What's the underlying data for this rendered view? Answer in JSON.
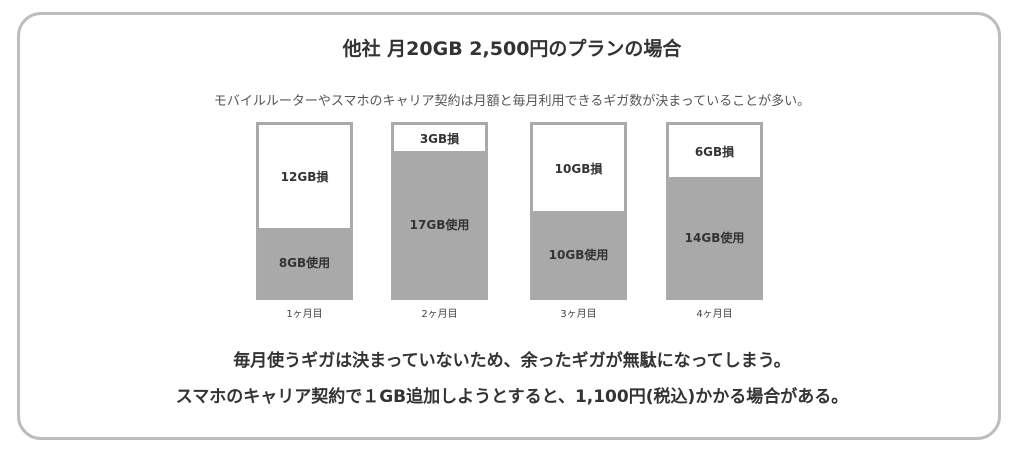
{
  "title": "他社 月20GB 2,500円のプランの場合",
  "subtitle": "モバイルルーターやスマホのキャリア契約は月額と毎月利用できるギガ数が決まっていることが多い。",
  "chart_data": {
    "type": "bar",
    "stacked": true,
    "capacity_gb": 20,
    "categories": [
      "1ヶ月目",
      "2ヶ月目",
      "3ヶ月目",
      "4ヶ月目"
    ],
    "used_gb": [
      8,
      17,
      10,
      14
    ],
    "loss_gb": [
      12,
      3,
      10,
      6
    ],
    "used_labels": [
      "8GB使用",
      "17GB使用",
      "10GB使用",
      "14GB使用"
    ],
    "loss_labels": [
      "12GB損",
      "3GB損",
      "10GB損",
      "6GB損"
    ],
    "colors": {
      "used": "#a9a9a9",
      "loss": "#ffffff",
      "border": "#aaaaaa"
    }
  },
  "notes": {
    "line1": "毎月使うギガは決まっていないため、余ったギガが無駄になってしまう。",
    "line2": "スマホのキャリア契約で１GB追加しようとすると、1,100円(税込)かかる場合がある。"
  }
}
